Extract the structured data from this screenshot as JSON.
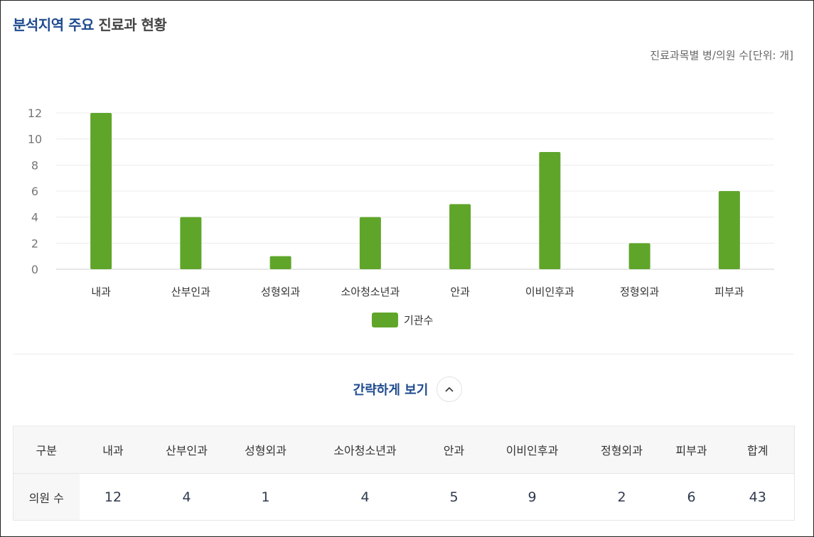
{
  "header": {
    "title_accent": "분석지역 주요",
    "title_rest": "진료과 현황",
    "unit_note": "진료과목별 병/의원 수[단위: 개]"
  },
  "chart_data": {
    "type": "bar",
    "categories": [
      "내과",
      "산부인과",
      "성형외과",
      "소아청소년과",
      "안과",
      "이비인후과",
      "정형외과",
      "피부과"
    ],
    "series": [
      {
        "name": "기관수",
        "values": [
          12,
          4,
          1,
          4,
          5,
          9,
          2,
          6
        ],
        "color": "#5fa52a"
      }
    ],
    "yticks": [
      0,
      2,
      4,
      6,
      8,
      10,
      12
    ],
    "ylim": [
      0,
      12
    ],
    "grid": true,
    "legend": "bottom"
  },
  "toggle": {
    "label": "간략하게 보기",
    "icon": "chevron-up-icon"
  },
  "table": {
    "header_label": "구분",
    "columns": [
      "내과",
      "산부인과",
      "성형외과",
      "소아청소년과",
      "안과",
      "이비인후과",
      "정형외과",
      "피부과",
      "합계"
    ],
    "row_label": "의원 수",
    "values": [
      "12",
      "4",
      "1",
      "4",
      "5",
      "9",
      "2",
      "6",
      "43"
    ]
  }
}
